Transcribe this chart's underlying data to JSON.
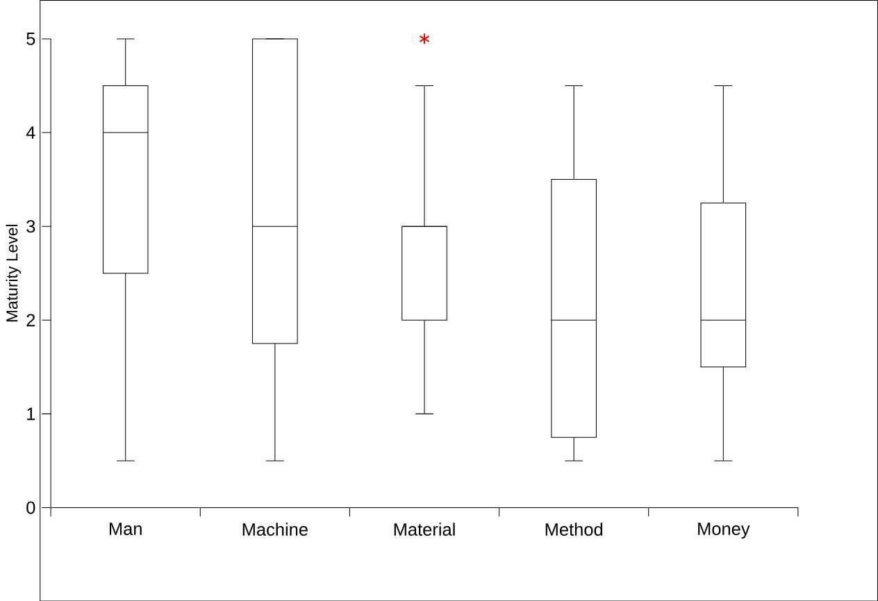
{
  "chart_data": {
    "type": "box",
    "ylabel": "Maturity Level",
    "categories": [
      "Man",
      "Machine",
      "Material",
      "Method",
      "Money"
    ],
    "ylim": [
      0,
      5
    ],
    "yticks": [
      0,
      1,
      2,
      3,
      4,
      5
    ],
    "grid": false,
    "marker": "star",
    "series": [
      {
        "color": "#000000",
        "boxes": [
          {
            "low": 0.5,
            "q1": 2.5,
            "median": 4,
            "q3": 4.5,
            "high": 5
          },
          {
            "low": 0.5,
            "q1": 1.75,
            "median": 3,
            "q3": 5,
            "high": 5
          },
          {
            "low": 1,
            "q1": 2,
            "median": 3,
            "q3": 3,
            "high": 4.5,
            "outliers": [
              5
            ]
          },
          {
            "low": 0.5,
            "q1": 0.75,
            "median": 2,
            "q3": 3.5,
            "high": 4.5
          },
          {
            "low": 0.5,
            "q1": 1.5,
            "median": 2,
            "q3": 3.25,
            "high": 4.5
          }
        ]
      }
    ]
  }
}
